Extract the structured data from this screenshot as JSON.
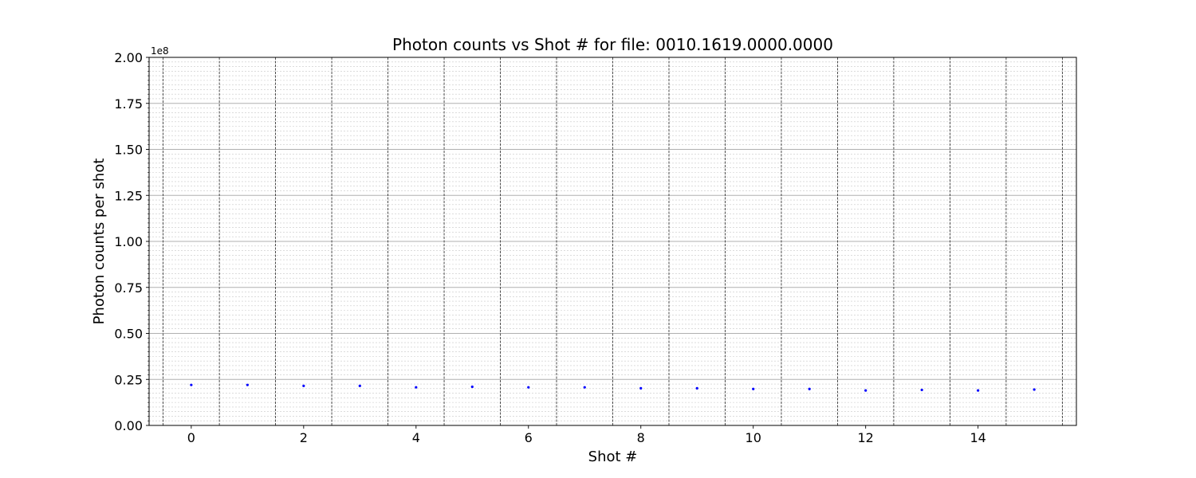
{
  "chart_data": {
    "type": "scatter",
    "title": "Photon counts vs Shot # for file: 0010.1619.0000.0000",
    "xlabel": "Shot #",
    "ylabel": "Photon counts per shot",
    "y_offset_label": "1e8",
    "y_multiplier": 100000000,
    "xlim": [
      -0.75,
      15.75
    ],
    "ylim": [
      0,
      2.0
    ],
    "x_ticks": [
      0,
      2,
      4,
      6,
      8,
      10,
      12,
      14
    ],
    "x_tick_labels": [
      "0",
      "2",
      "4",
      "6",
      "8",
      "10",
      "12",
      "14"
    ],
    "y_ticks": [
      0,
      0.25,
      0.5,
      0.75,
      1.0,
      1.25,
      1.5,
      1.75,
      2.0
    ],
    "y_tick_labels": [
      "0.00",
      "0.25",
      "0.50",
      "0.75",
      "1.00",
      "1.25",
      "1.50",
      "1.75",
      "2.00"
    ],
    "y_minor_step": 0.025,
    "shot_boundaries": [
      -0.5,
      0.5,
      1.5,
      2.5,
      3.5,
      4.5,
      5.5,
      6.5,
      7.5,
      8.5,
      9.5,
      10.5,
      11.5,
      12.5,
      13.5,
      14.5,
      15.5
    ],
    "grid": true,
    "marker_color": "#0000ff",
    "series": [
      {
        "x": [
          0,
          1,
          2,
          3,
          4,
          5,
          6,
          7,
          8,
          9,
          10,
          11,
          12,
          13,
          14,
          15
        ],
        "y": [
          0.22,
          0.22,
          0.215,
          0.215,
          0.207,
          0.21,
          0.207,
          0.207,
          0.202,
          0.202,
          0.198,
          0.198,
          0.19,
          0.193,
          0.19,
          0.195
        ]
      }
    ]
  }
}
